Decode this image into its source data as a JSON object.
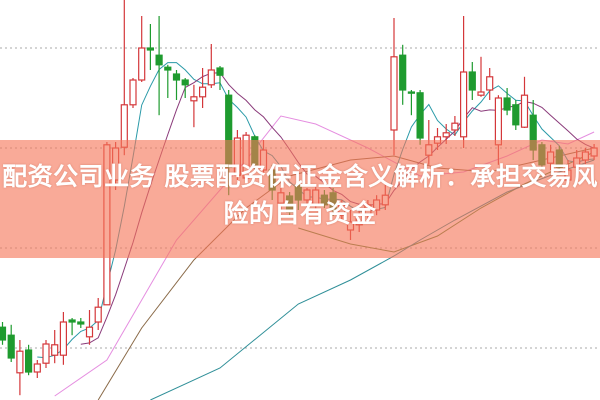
{
  "banner": {
    "title": "配资公司业务 股票配资保证金含义解析：承担交易风险的自有资金",
    "background": "#f5764f"
  },
  "chart_data": {
    "type": "candlestick",
    "title": "",
    "xlabel": "",
    "ylabel": "",
    "ylim": [
      0,
      100
    ],
    "grid": true,
    "grid_style": "dotted",
    "gridlines": [
      88,
      63,
      38,
      13
    ],
    "up_color": "#d4373a",
    "down_color": "#1e9b2f",
    "candle_fields": [
      "open",
      "high",
      "low",
      "close"
    ],
    "candles": [
      [
        18.2,
        19.5,
        13.8,
        15
      ],
      [
        16.2,
        18.8,
        9.5,
        10.5
      ],
      [
        6.8,
        15,
        1.2,
        12.2
      ],
      [
        12.5,
        13.8,
        6.2,
        7
      ],
      [
        7,
        10,
        5.5,
        9
      ],
      [
        9.2,
        15,
        8,
        14
      ],
      [
        11.2,
        17.5,
        9.2,
        13.8
      ],
      [
        11.2,
        22,
        8.8,
        19.5
      ],
      [
        20,
        20.5,
        16.2,
        19.5
      ],
      [
        19.5,
        20.5,
        18,
        19
      ],
      [
        15.8,
        22.5,
        13.8,
        18.2
      ],
      [
        19.5,
        25.5,
        17.5,
        23.2
      ],
      [
        23.8,
        64.5,
        23.8,
        63.8
      ],
      [
        55,
        64.5,
        52.5,
        63
      ],
      [
        63.2,
        100,
        61.2,
        73.8
      ],
      [
        73.8,
        80.5,
        73,
        80
      ],
      [
        80,
        96,
        79.5,
        88
      ],
      [
        88,
        94,
        82.5,
        87.5
      ],
      [
        86.2,
        96,
        71.2,
        83.8
      ],
      [
        83.2,
        83.8,
        75.5,
        82.5
      ],
      [
        81.5,
        82.5,
        75,
        80
      ],
      [
        80,
        80.5,
        75.5,
        78.8
      ],
      [
        74.8,
        78.8,
        68.2,
        75.8
      ],
      [
        75.8,
        83,
        73,
        78.2
      ],
      [
        78.8,
        89,
        78,
        82.5
      ],
      [
        83,
        83.5,
        77.5,
        81.2
      ],
      [
        76.2,
        77.5,
        51.2,
        58.2
      ],
      [
        56.2,
        67.5,
        55,
        65.5
      ],
      [
        55.5,
        67,
        55,
        66.2
      ],
      [
        65.8,
        66.2,
        57.5,
        58.8
      ],
      [
        57.5,
        65,
        56.2,
        62.5
      ],
      [
        57.5,
        58.8,
        50,
        52.5
      ],
      [
        49.2,
        53,
        47.5,
        51.8
      ],
      [
        51,
        52,
        46,
        47
      ],
      [
        53.8,
        55,
        47.5,
        50
      ],
      [
        50,
        53,
        48,
        52.5
      ],
      [
        48.8,
        53.8,
        47.5,
        52.5
      ],
      [
        51.2,
        52.5,
        48,
        48.8
      ],
      [
        51.8,
        53,
        46,
        47.5
      ],
      [
        46.2,
        50,
        45,
        48.8
      ],
      [
        42.5,
        47.5,
        40,
        44.5
      ],
      [
        43.8,
        48.8,
        42,
        46.2
      ],
      [
        46.2,
        50,
        45,
        48.8
      ],
      [
        47.5,
        51.2,
        46.2,
        50
      ],
      [
        48.8,
        53.8,
        47.5,
        51.2
      ],
      [
        67.5,
        95.5,
        61.2,
        85.8
      ],
      [
        86.2,
        88.8,
        73.8,
        77.5
      ],
      [
        77,
        77.5,
        71.2,
        76.8
      ],
      [
        76.8,
        77.5,
        63.8,
        65.5
      ],
      [
        61.2,
        70,
        58.8,
        63.8
      ],
      [
        64.2,
        68,
        62.5,
        65.8
      ],
      [
        65.8,
        69,
        64,
        66.8
      ],
      [
        67.5,
        71,
        66,
        69.2
      ],
      [
        65.8,
        96,
        63,
        82
      ],
      [
        82,
        84.5,
        75,
        77.5
      ],
      [
        76.2,
        85.8,
        75.8,
        77
      ],
      [
        77.5,
        83,
        75,
        80.8
      ],
      [
        63.8,
        76.2,
        58.8,
        75.5
      ],
      [
        75.5,
        78,
        71.2,
        72.5
      ],
      [
        73.8,
        75,
        67.5,
        68.8
      ],
      [
        68.2,
        80.8,
        68,
        76.2
      ],
      [
        71.2,
        75,
        60,
        62.5
      ],
      [
        63.8,
        64.5,
        57.5,
        58.8
      ],
      [
        59.2,
        63.8,
        57.5,
        62
      ],
      [
        62.5,
        63.5,
        57.5,
        58.2
      ],
      [
        55,
        60,
        54.2,
        57.5
      ],
      [
        58.2,
        62.5,
        57,
        60.5
      ],
      [
        60,
        63,
        59,
        62
      ],
      [
        61,
        64,
        60,
        63
      ]
    ],
    "moving_averages": [
      {
        "periods": 5,
        "color": "#2a9aa8"
      },
      {
        "periods": 10,
        "color": "#8a3a7a"
      }
    ],
    "long_lines": [
      {
        "color": "#e58ee0",
        "points": [
          [
            6,
            1
          ],
          [
            12,
            10
          ],
          [
            20,
            40
          ],
          [
            28,
            60
          ],
          [
            32,
            71
          ],
          [
            36,
            69
          ],
          [
            42,
            63
          ],
          [
            48,
            56
          ],
          [
            53,
            57
          ],
          [
            58,
            61
          ],
          [
            62,
            65
          ],
          [
            65,
            64
          ],
          [
            68,
            67
          ]
        ]
      },
      {
        "color": "#8a6a48",
        "points": [
          [
            11,
            0
          ],
          [
            16,
            18
          ],
          [
            22,
            35
          ],
          [
            28,
            48
          ],
          [
            33,
            56
          ],
          [
            40,
            60
          ],
          [
            45,
            61
          ],
          [
            50,
            58
          ],
          [
            56,
            57
          ],
          [
            62,
            60
          ],
          [
            66,
            62
          ],
          [
            68,
            63
          ]
        ]
      },
      {
        "color": "#5c8a40",
        "points": [
          [
            34,
            43
          ],
          [
            40,
            39
          ],
          [
            45,
            37
          ],
          [
            50,
            41
          ],
          [
            55,
            48
          ],
          [
            60,
            54
          ],
          [
            64,
            58
          ],
          [
            68,
            62
          ]
        ]
      },
      {
        "color": "#2f8f98",
        "points": [
          [
            17,
            0
          ],
          [
            25,
            8
          ],
          [
            34,
            24
          ],
          [
            40,
            30
          ],
          [
            45,
            36
          ],
          [
            48,
            40
          ],
          [
            52,
            45
          ],
          [
            58,
            52
          ],
          [
            64,
            57
          ],
          [
            68,
            60
          ]
        ]
      }
    ]
  }
}
